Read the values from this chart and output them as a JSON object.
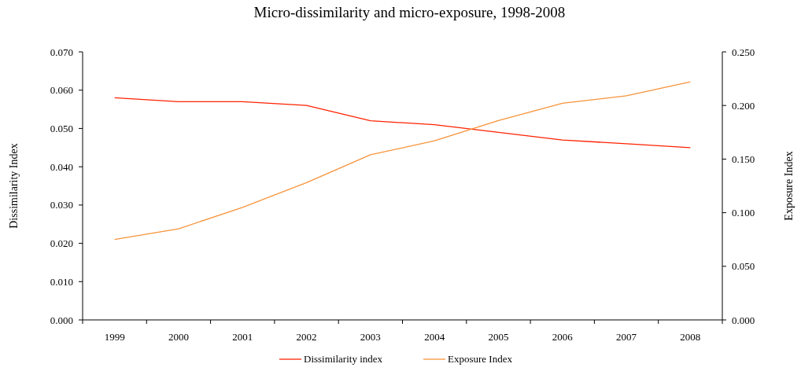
{
  "chart_data": {
    "type": "line",
    "title": "Micro-dissimilarity and micro-exposure, 1998-2008",
    "ylabel": "Dissimilarity Index",
    "y2label": "Exposure Index",
    "categories": [
      "1999",
      "2000",
      "2001",
      "2002",
      "2003",
      "2004",
      "2005",
      "2006",
      "2007",
      "2008"
    ],
    "series": [
      {
        "name": "Dissimilarity index",
        "color": "#ff2200",
        "values": [
          0.058,
          0.057,
          0.057,
          0.056,
          0.052,
          0.051,
          0.049,
          0.047,
          0.046,
          0.045
        ]
      },
      {
        "name": "Exposure Index",
        "color": "#f7933a",
        "axis": "y2",
        "values": [
          0.075,
          0.085,
          0.105,
          0.128,
          0.154,
          0.167,
          0.186,
          0.202,
          0.209,
          0.222
        ]
      }
    ],
    "ylim": [
      0,
      0.07
    ],
    "yticks": [
      {
        "value": 0,
        "label": "0.000"
      },
      {
        "value": 0.01,
        "label": "0.010"
      },
      {
        "value": 0.02,
        "label": "0.020"
      },
      {
        "value": 0.03,
        "label": "0.030"
      },
      {
        "value": 0.04,
        "label": "0.040"
      },
      {
        "value": 0.05,
        "label": "0.050"
      },
      {
        "value": 0.06,
        "label": "0.060"
      },
      {
        "value": 0.07,
        "label": "0.070"
      }
    ],
    "y2lim": [
      0,
      0.25
    ],
    "y2ticks": [
      {
        "value": 0,
        "label": "0.000"
      },
      {
        "value": 0.05,
        "label": "0.050"
      },
      {
        "value": 0.1,
        "label": "0.100"
      },
      {
        "value": 0.15,
        "label": "0.150"
      },
      {
        "value": 0.2,
        "label": "0.200"
      },
      {
        "value": 0.25,
        "label": "0.250"
      }
    ],
    "grid": false,
    "legend": "bottom",
    "line_style": "solid",
    "marker": "none"
  }
}
